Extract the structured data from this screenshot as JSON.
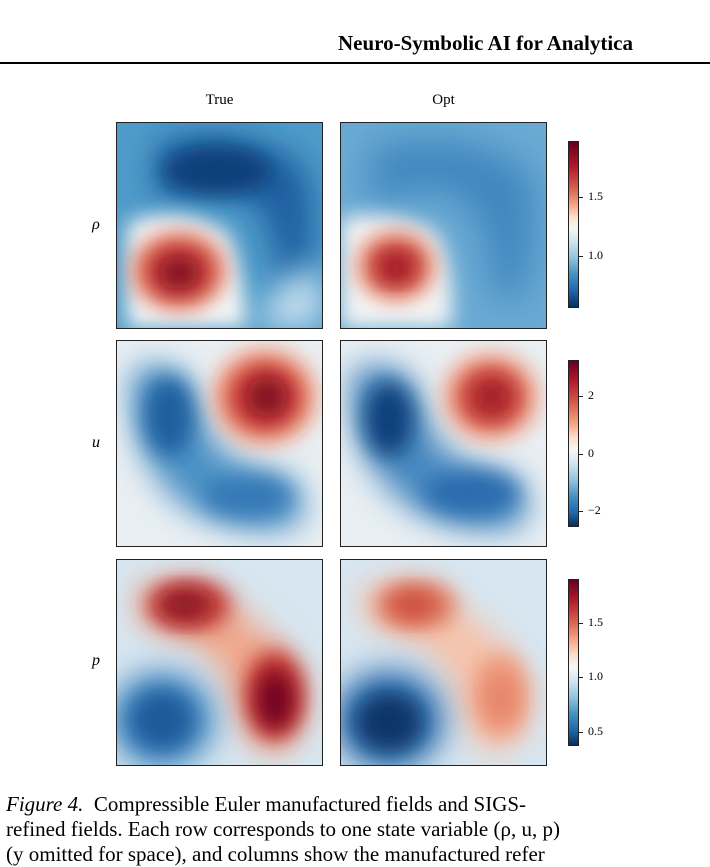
{
  "header": {
    "title": "Neuro-Symbolic AI for Analytica"
  },
  "figure": {
    "column_titles": [
      "True",
      "Opt"
    ],
    "rows": [
      {
        "label": "ρ",
        "colorbar_ticks": [
          "1.5",
          "1.0"
        ]
      },
      {
        "label": "u",
        "colorbar_ticks": [
          "2",
          "0",
          "−2"
        ]
      },
      {
        "label": "p",
        "colorbar_ticks": [
          "1.5",
          "1.0",
          "0.5"
        ]
      }
    ],
    "colormap": [
      "#67001f",
      "#b2182b",
      "#d6604d",
      "#f4a582",
      "#fddbc7",
      "#f7f7f7",
      "#d1e5f0",
      "#92c5de",
      "#4393c3",
      "#2166ac",
      "#053061"
    ]
  },
  "caption": {
    "label": "Figure 4.",
    "line1_text": "Compressible Euler manufactured fields and SIGS-",
    "line2_text": "refined fields. Each row corresponds to one state variable (ρ, u, p)",
    "line3_text": "(y omitted for space), and columns show the manufactured refer"
  }
}
